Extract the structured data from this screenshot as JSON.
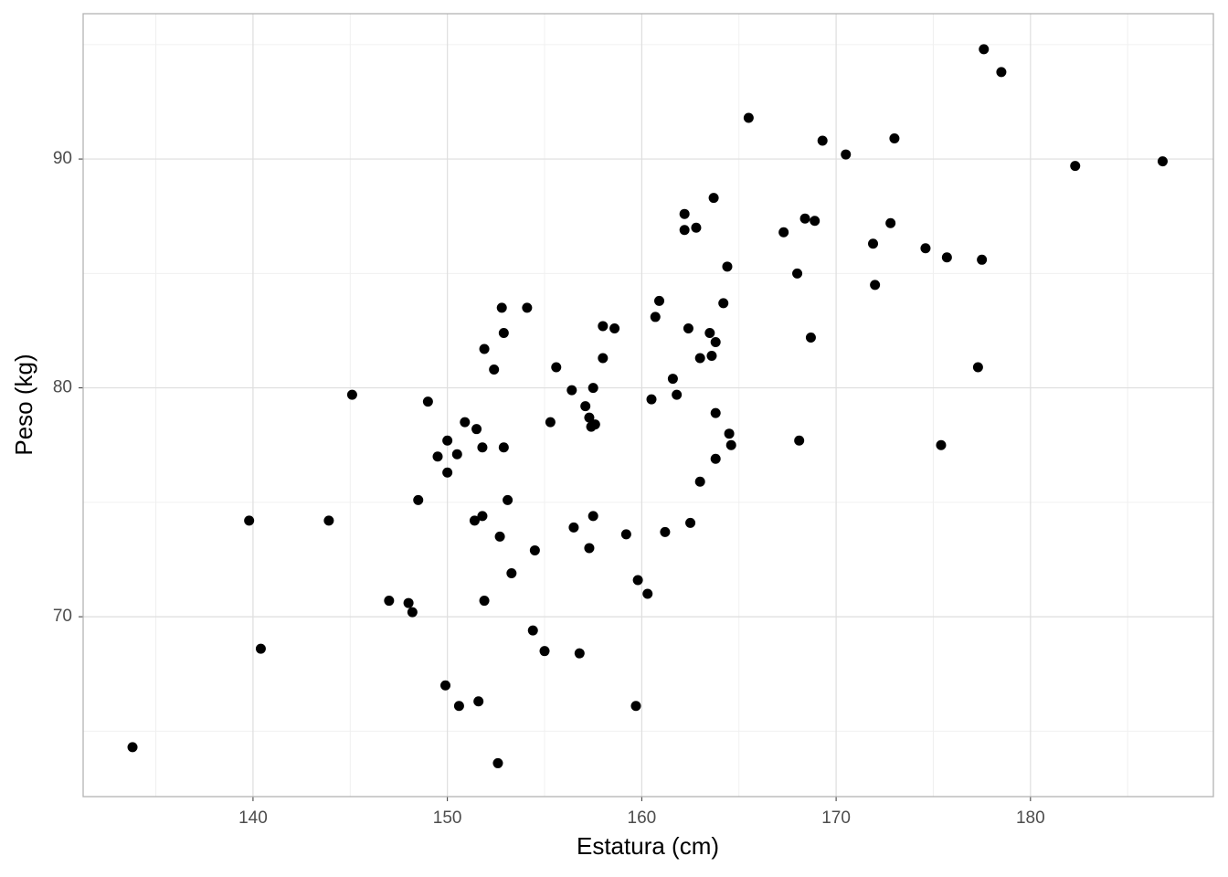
{
  "chart_data": {
    "type": "scatter",
    "xlabel": "Estatura (cm)",
    "ylabel": "Peso (kg)",
    "color": "#000000",
    "grid": true,
    "xlim": [
      131.26,
      189.41
    ],
    "ylim": [
      62.14,
      96.35
    ],
    "xticks": [
      140,
      150,
      160,
      170,
      180
    ],
    "yticks": [
      70,
      80,
      90
    ],
    "x_minor_grid": [
      135,
      145,
      155,
      165,
      175,
      185
    ],
    "y_minor_grid": [
      65,
      75,
      85,
      95
    ],
    "x": [
      177.6,
      178.5,
      165.5,
      169.3,
      173.0,
      170.5,
      182.3,
      186.8,
      163.7,
      162.2,
      162.2,
      162.8,
      168.4,
      168.9,
      167.3,
      172.8,
      171.9,
      174.6,
      175.7,
      177.5,
      164.4,
      168.0,
      172.0,
      152.8,
      154.1,
      160.9,
      160.7,
      164.2,
      158.0,
      158.6,
      162.4,
      163.5,
      152.9,
      168.7,
      163.8,
      151.9,
      158.0,
      163.0,
      163.6,
      155.6,
      152.4,
      177.3,
      161.6,
      156.4,
      157.5,
      161.8,
      145.1,
      149.0,
      160.5,
      157.1,
      163.8,
      157.3,
      155.3,
      150.9,
      157.4,
      157.6,
      151.5,
      164.5,
      168.1,
      150.0,
      164.6,
      175.4,
      151.8,
      152.9,
      150.5,
      149.5,
      163.8,
      150.0,
      163.0,
      148.5,
      153.1,
      139.8,
      143.9,
      157.5,
      151.8,
      151.4,
      162.5,
      156.5,
      159.2,
      161.2,
      152.7,
      154.5,
      157.3,
      153.3,
      159.8,
      160.3,
      147.0,
      148.0,
      151.9,
      148.2,
      154.4,
      140.4,
      155.0,
      156.8,
      149.9,
      150.6,
      151.6,
      159.7,
      133.8,
      152.6
    ],
    "values": [
      94.8,
      93.8,
      91.8,
      90.8,
      90.9,
      90.2,
      89.7,
      89.9,
      88.3,
      87.6,
      86.9,
      87.0,
      87.4,
      87.3,
      86.8,
      87.2,
      86.3,
      86.1,
      85.7,
      85.6,
      85.3,
      85.0,
      84.5,
      83.5,
      83.5,
      83.8,
      83.1,
      83.7,
      82.7,
      82.6,
      82.6,
      82.4,
      82.4,
      82.2,
      82.0,
      81.7,
      81.3,
      81.3,
      81.4,
      80.9,
      80.8,
      80.9,
      80.4,
      79.9,
      80.0,
      79.7,
      79.7,
      79.4,
      79.5,
      79.2,
      78.9,
      78.7,
      78.5,
      78.5,
      78.3,
      78.4,
      78.2,
      78.0,
      77.7,
      77.7,
      77.5,
      77.5,
      77.4,
      77.4,
      77.1,
      77.0,
      76.9,
      76.3,
      75.9,
      75.1,
      75.1,
      74.2,
      74.2,
      74.4,
      74.4,
      74.2,
      74.1,
      73.9,
      73.6,
      73.7,
      73.5,
      72.9,
      73.0,
      71.9,
      71.6,
      71.0,
      70.7,
      70.6,
      70.7,
      70.2,
      69.4,
      68.6,
      68.5,
      68.4,
      67.0,
      66.1,
      66.3,
      66.1,
      64.3,
      63.6
    ]
  }
}
